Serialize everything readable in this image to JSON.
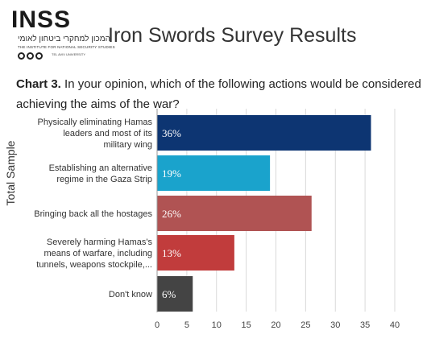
{
  "header": {
    "logo_word": "INSS",
    "logo_hebrew": "המכון למחקרי ביטחון לאומי",
    "logo_english": "THE INSTITUTE FOR NATIONAL SECURITY STUDIES",
    "logo_tagline": "TEL AVIV UNIVERSITY",
    "page_title": "Iron Swords Survey Results"
  },
  "question": {
    "label": "Chart 3.",
    "text": " In your opinion, which of the following actions would be considered achieving the aims of the war?"
  },
  "chart_data": {
    "type": "bar",
    "orientation": "horizontal",
    "ylabel": "Total Sample",
    "categories": [
      [
        "Physically eliminating Hamas",
        "leaders and most of its",
        "military wing"
      ],
      [
        "Establishing an alternative",
        "regime in the Gaza Strip"
      ],
      [
        "Bringing back all the hostages"
      ],
      [
        "Severely harming Hamas's",
        "means of warfare, including",
        "tunnels, weapons stockpile,..."
      ],
      [
        "Don't know"
      ]
    ],
    "values": [
      36,
      19,
      26,
      13,
      6
    ],
    "data_labels": [
      "36%",
      "19%",
      "26%",
      "13%",
      "6%"
    ],
    "colors": [
      "#0d3572",
      "#1aa3cc",
      "#b05353",
      "#c13c3c",
      "#444444"
    ],
    "xticks": [
      0,
      5,
      10,
      15,
      20,
      25,
      30,
      35,
      40
    ],
    "xlim": [
      0,
      40
    ],
    "grid": true
  }
}
